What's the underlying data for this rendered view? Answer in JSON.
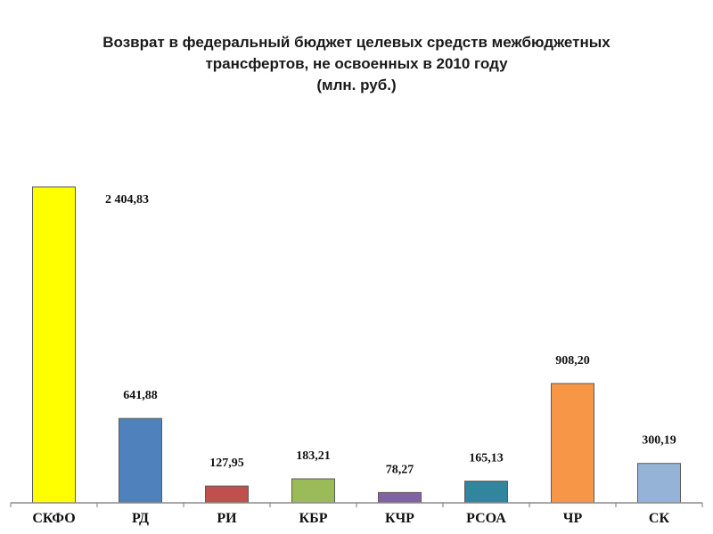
{
  "title_lines": [
    "Возврат в федеральный  бюджет целевых средств межбюджетных",
    "трансфертов, не освоенных в 2010 году",
    "(млн. руб.)"
  ],
  "chart_data": {
    "type": "bar",
    "title": "Возврат в федеральный  бюджет целевых средств межбюджетных трансфертов, не освоенных в 2010 году (млн. руб.)",
    "categories": [
      "СКФО",
      "РД",
      "РИ",
      "КБР",
      "КЧР",
      "РСОА",
      "ЧР",
      "СК"
    ],
    "values": [
      2404.83,
      641.88,
      127.95,
      183.21,
      78.27,
      165.13,
      908.2,
      300.19
    ],
    "value_labels": [
      "2 404,83",
      "641,88",
      "127,95",
      "183,21",
      "78,27",
      "165,13",
      "908,20",
      "300,19"
    ],
    "colors": [
      "#ffff00",
      "#4f81bd",
      "#c0504d",
      "#9bbb59",
      "#8064a2",
      "#31859c",
      "#f79646",
      "#95b3d7"
    ],
    "ylim": [
      0,
      2404.83
    ],
    "grid": false,
    "legend": "none"
  }
}
